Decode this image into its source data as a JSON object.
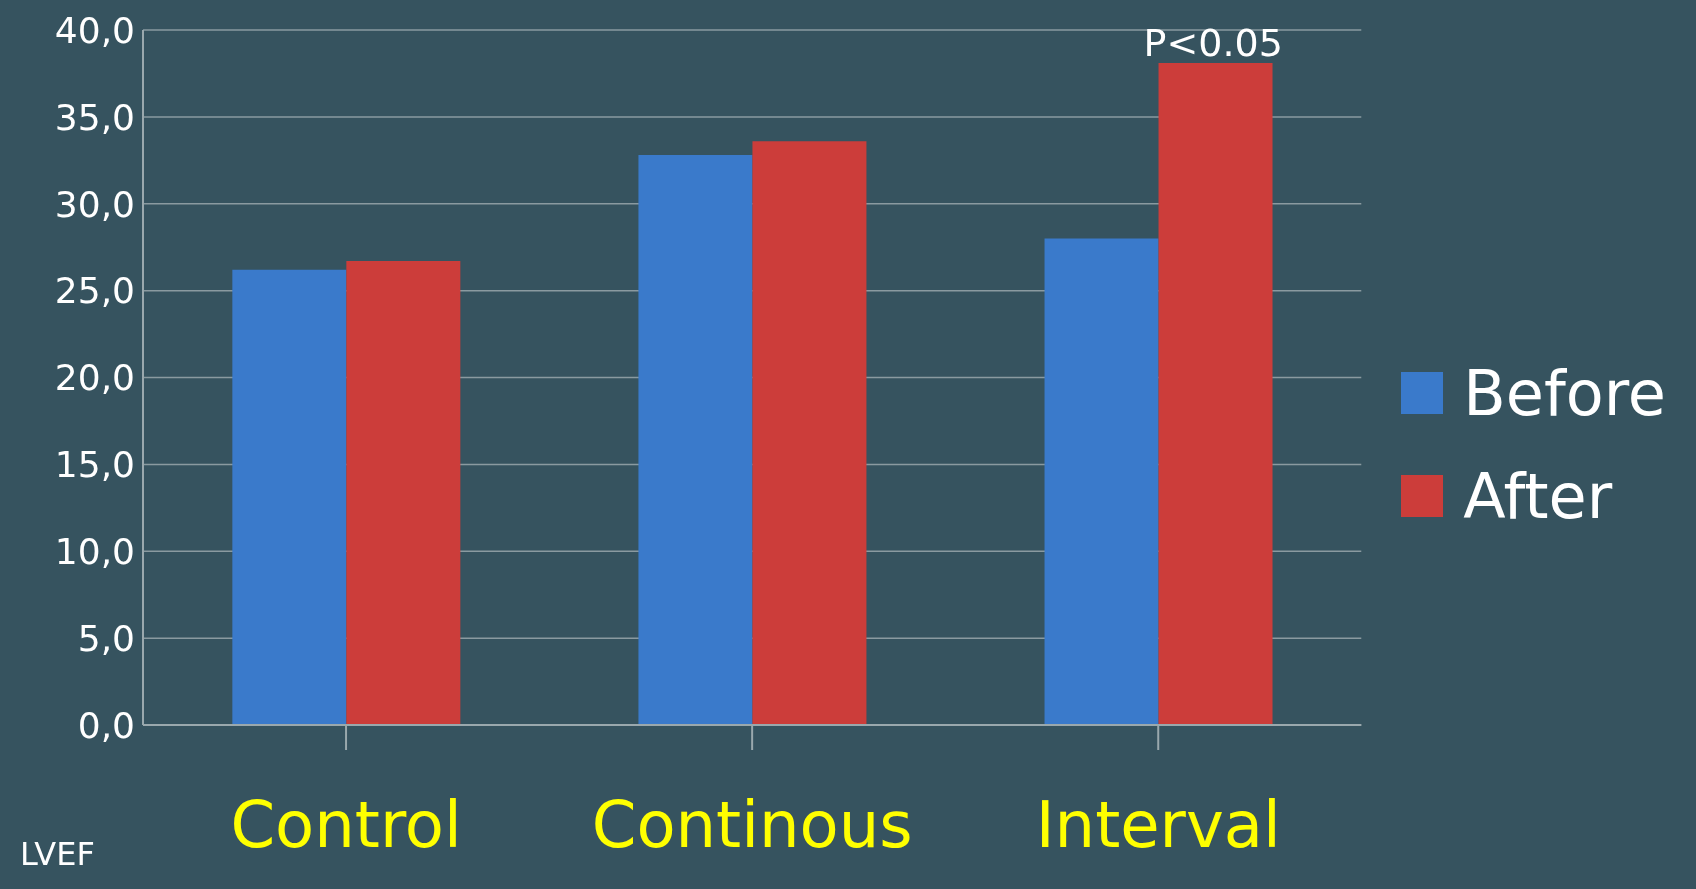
{
  "chart_data": {
    "type": "bar",
    "categories": [
      "Control",
      "Continous",
      "Interval"
    ],
    "series": [
      {
        "name": "Before",
        "color": "#3a7acb",
        "values": [
          26.2,
          32.8,
          28.0
        ]
      },
      {
        "name": "After",
        "color": "#cc3d3a",
        "values": [
          26.7,
          33.6,
          38.1
        ]
      }
    ],
    "ylim": [
      0,
      40
    ],
    "yticks": [
      {
        "value": 0,
        "label": "0,0"
      },
      {
        "value": 5,
        "label": "5,0"
      },
      {
        "value": 10,
        "label": "10,0"
      },
      {
        "value": 15,
        "label": "15,0"
      },
      {
        "value": 20,
        "label": "20,0"
      },
      {
        "value": 25,
        "label": "25,0"
      },
      {
        "value": 30,
        "label": "30,0"
      },
      {
        "value": 35,
        "label": "35,0"
      },
      {
        "value": 40,
        "label": "40,0"
      }
    ],
    "grid": "y",
    "legend": "right",
    "annotations": [
      "LVEF",
      {
        "text": "P<0.05",
        "x": "Interval",
        "y": 38.1
      }
    ]
  }
}
